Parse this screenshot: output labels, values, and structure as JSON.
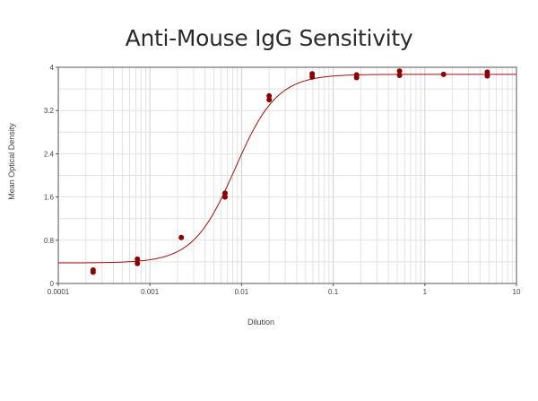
{
  "chart_data": {
    "type": "scatter",
    "title": "Anti-Mouse IgG Sensitivity",
    "xlabel": "Dilution",
    "ylabel": "Mean Optical Density",
    "x_scale": "log",
    "xlim": [
      0.0001,
      10
    ],
    "ylim": [
      0,
      4
    ],
    "x_ticks": [
      {
        "value": 0.0001,
        "label": "0.0001"
      },
      {
        "value": 0.001,
        "label": "0.001"
      },
      {
        "value": 0.01,
        "label": "0.01"
      },
      {
        "value": 0.1,
        "label": "0.1"
      },
      {
        "value": 1,
        "label": "1"
      },
      {
        "value": 10,
        "label": "10"
      }
    ],
    "y_ticks": [
      {
        "value": 0,
        "label": "0"
      },
      {
        "value": 0.8,
        "label": "0.8"
      },
      {
        "value": 1.6,
        "label": "1.6"
      },
      {
        "value": 2.4,
        "label": "2.4"
      },
      {
        "value": 3.2,
        "label": "3.2"
      },
      {
        "value": 4,
        "label": "4"
      }
    ],
    "grid": true,
    "marker_color": "#8b0000",
    "line_color": "#a01010",
    "points": [
      {
        "x": 0.00024,
        "y": 0.21
      },
      {
        "x": 0.00024,
        "y": 0.25
      },
      {
        "x": 0.00073,
        "y": 0.37
      },
      {
        "x": 0.00073,
        "y": 0.45
      },
      {
        "x": 0.0022,
        "y": 0.85
      },
      {
        "x": 0.0066,
        "y": 1.6
      },
      {
        "x": 0.0066,
        "y": 1.67
      },
      {
        "x": 0.02,
        "y": 3.4
      },
      {
        "x": 0.02,
        "y": 3.47
      },
      {
        "x": 0.059,
        "y": 3.82
      },
      {
        "x": 0.059,
        "y": 3.88
      },
      {
        "x": 0.18,
        "y": 3.81
      },
      {
        "x": 0.18,
        "y": 3.86
      },
      {
        "x": 0.53,
        "y": 3.85
      },
      {
        "x": 0.53,
        "y": 3.93
      },
      {
        "x": 1.6,
        "y": 3.87
      },
      {
        "x": 4.8,
        "y": 3.84
      },
      {
        "x": 4.8,
        "y": 3.91
      }
    ],
    "fit_curve": {
      "bottom": 0.38,
      "top": 3.87,
      "ec50": 0.0085,
      "hill_slope": 1.9
    }
  }
}
